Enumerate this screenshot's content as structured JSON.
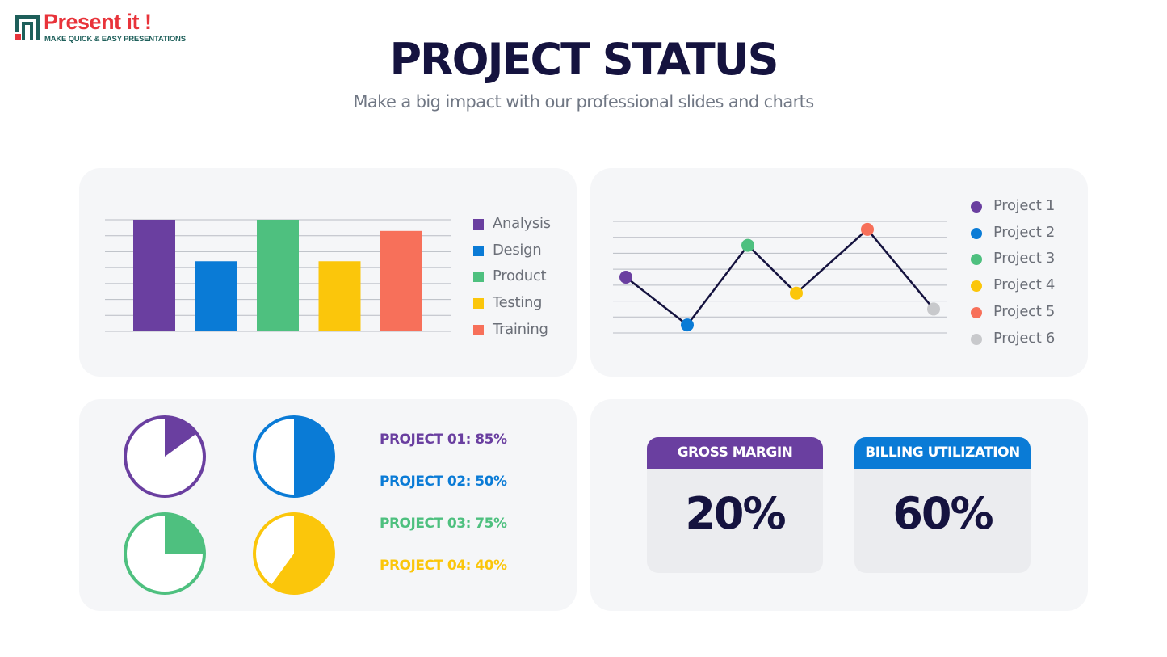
{
  "brand": {
    "name": "Present it !",
    "tagline": "MAKE QUICK & EASY PRESENTATIONS",
    "colors": {
      "name": "#e8333a",
      "tagline": "#1e5f5a",
      "mark_bars": "#1e5f5a",
      "mark_square": "#e8333a"
    }
  },
  "header": {
    "title": "PROJECT STATUS",
    "subtitle": "Make a big impact with our professional slides and charts"
  },
  "chart_data": [
    {
      "type": "bar",
      "title": "",
      "categories": [
        "Analysis",
        "Design",
        "Product",
        "Testing",
        "Training"
      ],
      "values": [
        7,
        4.4,
        7,
        4.4,
        6.3
      ],
      "colors": [
        "#6a3fa0",
        "#0a7bd6",
        "#4ec07f",
        "#fbc60b",
        "#f7705a"
      ],
      "ylim": [
        0,
        7
      ],
      "grid": true,
      "legend": "right"
    },
    {
      "type": "line",
      "title": "",
      "x": [
        "Project 1",
        "Project 2",
        "Project 3",
        "Project 4",
        "Project 5",
        "Project 6"
      ],
      "values": [
        3.5,
        0.5,
        5.5,
        2.5,
        6.5,
        1.5
      ],
      "point_colors": [
        "#6a3fa0",
        "#0a7bd6",
        "#4ec07f",
        "#fbc60b",
        "#f7705a",
        "#c8c9cc"
      ],
      "line_color": "#15133f",
      "ylim": [
        0,
        7
      ],
      "grid": true,
      "legend": "right"
    },
    {
      "type": "pie",
      "title": "",
      "items": [
        {
          "label": "PROJECT 01: 85%",
          "percent": 85,
          "color": "#6a3fa0"
        },
        {
          "label": "PROJECT 02: 50%",
          "percent": 50,
          "color": "#0a7bd6"
        },
        {
          "label": "PROJECT 03: 75%",
          "percent": 75,
          "color": "#4ec07f"
        },
        {
          "label": "PROJECT 04: 40%",
          "percent": 40,
          "color": "#fbc60b"
        }
      ]
    }
  ],
  "kpis": [
    {
      "label": "GROSS MARGIN",
      "value": "20%",
      "color": "#6a3fa0"
    },
    {
      "label": "BILLING UTILIZATION",
      "value": "60%",
      "color": "#0a7bd6"
    }
  ]
}
